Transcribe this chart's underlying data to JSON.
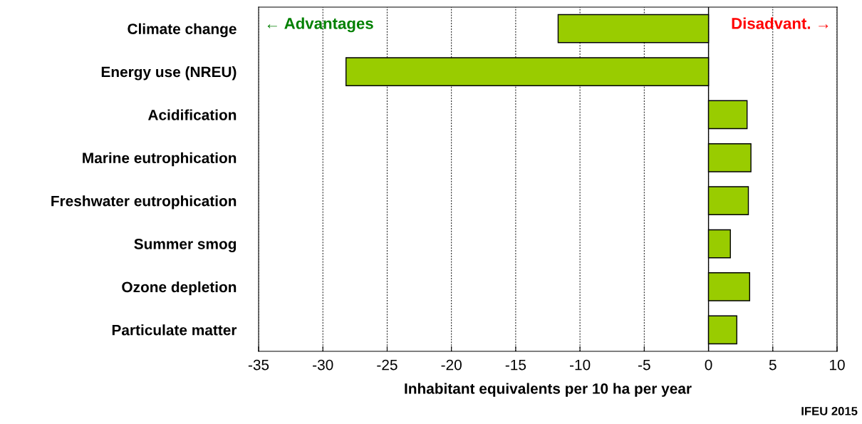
{
  "chart_data": {
    "type": "bar",
    "orientation": "horizontal",
    "xlabel": "Inhabitant equivalents per 10 ha per year",
    "categories": [
      "Climate change",
      "Energy use (NREU)",
      "Acidification",
      "Marine eutrophication",
      "Freshwater eutrophication",
      "Summer smog",
      "Ozone depletion",
      "Particulate matter"
    ],
    "values": [
      -11.7,
      -28.2,
      3.0,
      3.3,
      3.1,
      1.7,
      3.2,
      2.2
    ],
    "color": "#99cc00",
    "xlim": [
      -35,
      10
    ],
    "xticks": [
      -35,
      -30,
      -25,
      -20,
      -15,
      -10,
      -5,
      0,
      5,
      10
    ],
    "grid": "x",
    "legend": false,
    "annotations": [
      "← Advantages",
      "Disadvant. →",
      "IFEU 2015"
    ]
  }
}
